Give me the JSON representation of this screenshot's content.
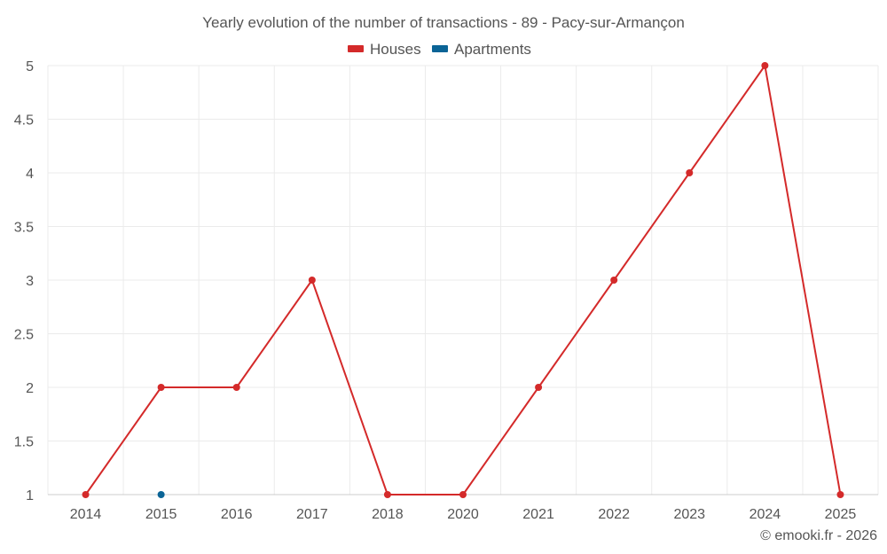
{
  "chart_data": {
    "type": "line",
    "title": "Yearly evolution of the number of transactions - 89 - Pacy-sur-Armançon",
    "categories": [
      "2014",
      "2015",
      "2016",
      "2017",
      "2018",
      "2020",
      "2021",
      "2022",
      "2023",
      "2024",
      "2025"
    ],
    "series": [
      {
        "name": "Houses",
        "color": "#d42a2a",
        "values": [
          1,
          2,
          2,
          3,
          1,
          1,
          2,
          3,
          4,
          5,
          1
        ]
      },
      {
        "name": "Apartments",
        "color": "#0a6496",
        "values": [
          null,
          1,
          null,
          null,
          null,
          null,
          null,
          null,
          null,
          null,
          null
        ]
      }
    ],
    "ylim": [
      1,
      5
    ],
    "yticks": [
      "1",
      "1.5",
      "2",
      "2.5",
      "3",
      "3.5",
      "4",
      "4.5",
      "5"
    ],
    "xlabel": "",
    "ylabel": "",
    "grid": true,
    "legend_position": "top-center"
  },
  "credit": "© emooki.fr - 2026"
}
